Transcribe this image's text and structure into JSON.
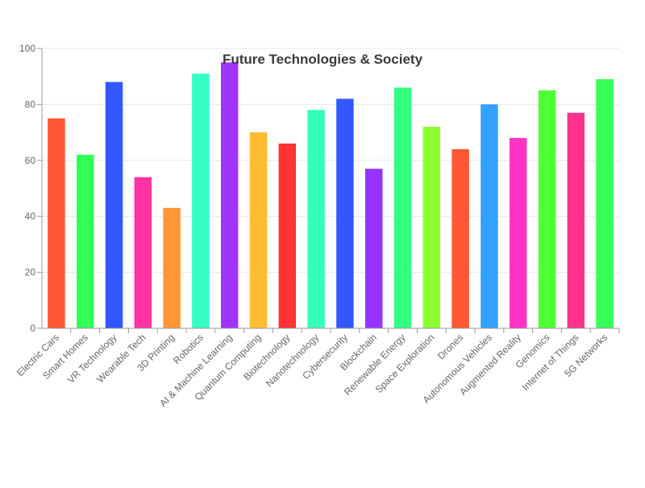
{
  "chart_data": {
    "type": "bar",
    "title": "Future Technologies & Society",
    "xlabel": "",
    "ylabel": "",
    "ylim": [
      0,
      100
    ],
    "yticks": [
      0,
      20,
      40,
      60,
      80,
      100
    ],
    "grid": true,
    "legend": "none",
    "categories": [
      "Electric Cars",
      "Smart Homes",
      "VR Technology",
      "Wearable Tech",
      "3D Printing",
      "Robotics",
      "AI & Machine Learning",
      "Quantum Computing",
      "Biotechnology",
      "Nanotechnology",
      "Cybersecurity",
      "Blockchain",
      "Renewable Energy",
      "Space Exploration",
      "Drones",
      "Autonomous Vehicles",
      "Augmented Reality",
      "Genomics",
      "Internet of Things",
      "5G Networks"
    ],
    "values": [
      75,
      62,
      88,
      54,
      43,
      91,
      95,
      70,
      66,
      78,
      82,
      57,
      86,
      72,
      64,
      80,
      68,
      85,
      77,
      89
    ],
    "colors": [
      "#ff5733",
      "#33ff57",
      "#3357ff",
      "#ff33a1",
      "#ff9633",
      "#33ffc4",
      "#a133ff",
      "#ffbd33",
      "#ff3333",
      "#33ffbd",
      "#3357ff",
      "#9633ff",
      "#33ff81",
      "#8cff33",
      "#ff5733",
      "#33a1ff",
      "#ff33c4",
      "#4dff33",
      "#ff338c",
      "#33ff57"
    ]
  }
}
